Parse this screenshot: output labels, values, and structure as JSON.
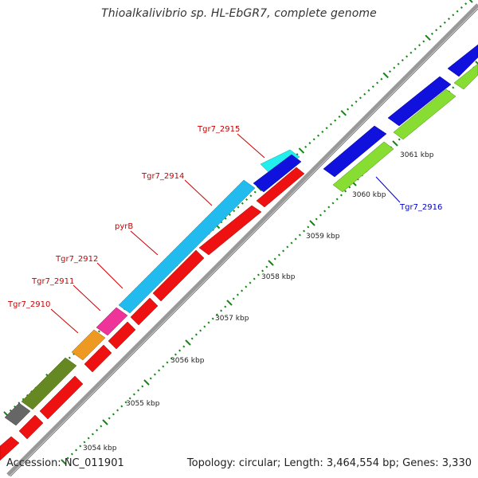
{
  "title": "Thioalkalivibrio sp. HL-EbGR7, complete genome",
  "footer": {
    "accession": "Accession: NC_011901",
    "stats": "Topology: circular; Length: 3,464,554 bp; Genes: 3,330"
  },
  "scale_labels": [
    {
      "text": "3054 kbp",
      "kbp": 3054
    },
    {
      "text": "3055 kbp",
      "kbp": 3055
    },
    {
      "text": "3056 kbp",
      "kbp": 3056
    },
    {
      "text": "3057 kbp",
      "kbp": 3057
    },
    {
      "text": "3058 kbp",
      "kbp": 3058
    },
    {
      "text": "3059 kbp",
      "kbp": 3059
    },
    {
      "text": "3060 kbp",
      "kbp": 3060
    },
    {
      "text": "3061 kbp",
      "kbp": 3061
    }
  ],
  "gene_labels": [
    {
      "text": "Tgr7_2910",
      "color": "#cc0000"
    },
    {
      "text": "Tgr7_2911",
      "color": "#cc0000"
    },
    {
      "text": "Tgr7_2912",
      "color": "#cc0000"
    },
    {
      "text": "pyrB",
      "color": "#cc0000"
    },
    {
      "text": "Tgr7_2914",
      "color": "#cc0000"
    },
    {
      "text": "Tgr7_2915",
      "color": "#cc0000"
    },
    {
      "text": "Tgr7_2916",
      "color": "#0000cc"
    }
  ],
  "colors": {
    "red": "#ee1111",
    "gray": "#666666",
    "olive": "#668822",
    "orange": "#ee9922",
    "pink": "#ee3399",
    "sky": "#22bbee",
    "cyan": "#22eeee",
    "blue": "#1111dd",
    "green": "#88dd33",
    "backbone": "#999999",
    "tick": "#118811"
  }
}
